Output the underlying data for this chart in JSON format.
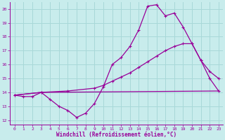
{
  "xlabel": "Windchill (Refroidissement éolien,°C)",
  "background_color": "#c8ecec",
  "grid_color": "#a8d8d8",
  "line_color": "#990099",
  "xlim": [
    -0.5,
    23.5
  ],
  "ylim": [
    11.7,
    20.5
  ],
  "xticks": [
    0,
    1,
    2,
    3,
    4,
    5,
    6,
    7,
    8,
    9,
    10,
    11,
    12,
    13,
    14,
    15,
    16,
    17,
    18,
    19,
    20,
    21,
    22,
    23
  ],
  "yticks": [
    12,
    13,
    14,
    15,
    16,
    17,
    18,
    19,
    20
  ],
  "line1_x": [
    0,
    1,
    2,
    3,
    4,
    5,
    6,
    7,
    8,
    9,
    10,
    11,
    12,
    13,
    14,
    15,
    16,
    17,
    18,
    19,
    20,
    21,
    22,
    23
  ],
  "line1_y": [
    13.8,
    13.7,
    13.7,
    14.0,
    13.5,
    13.0,
    12.7,
    12.2,
    12.5,
    13.2,
    14.4,
    16.0,
    16.5,
    17.3,
    18.5,
    20.2,
    20.3,
    19.5,
    19.7,
    18.7,
    17.5,
    16.3,
    15.0,
    14.1
  ],
  "line2_x": [
    0,
    3,
    23
  ],
  "line2_y": [
    13.8,
    14.0,
    14.1
  ],
  "line3_x": [
    0,
    3,
    6,
    9,
    10,
    11,
    12,
    13,
    14,
    15,
    16,
    17,
    18,
    19,
    20,
    21,
    22,
    23
  ],
  "line3_y": [
    13.8,
    14.0,
    14.1,
    14.3,
    14.5,
    14.8,
    15.1,
    15.4,
    15.8,
    16.2,
    16.6,
    17.0,
    17.3,
    17.5,
    17.5,
    16.3,
    15.5,
    15.0
  ]
}
